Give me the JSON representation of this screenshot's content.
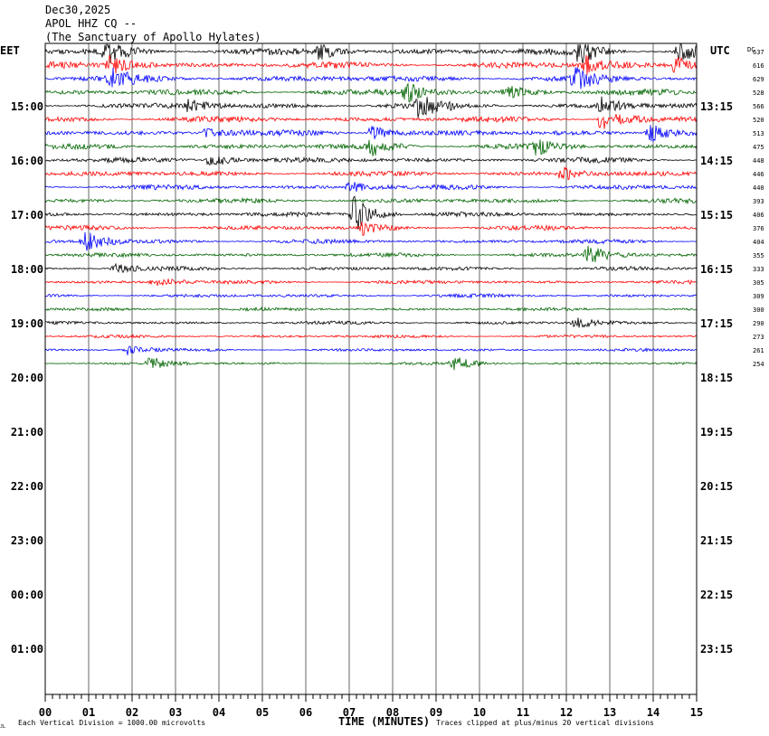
{
  "header": {
    "date": "Dec30,2025",
    "station": "APOL HHZ CQ --",
    "site": "(The Sanctuary of Apollo Hylates)"
  },
  "labels": {
    "left_tz": "EET",
    "right_tz": "UTC",
    "dc": "DC",
    "xlabel": "TIME (MINUTES)",
    "footer_left": "Each Vertical Division = 1000.00 microvolts",
    "footer_right": "Traces clipped at plus/minus 20 vertical divisions",
    "corner_mark": "JL"
  },
  "colors": {
    "trace_cycle": [
      "#000000",
      "#ff0000",
      "#0000ff",
      "#006400"
    ],
    "grid": "#000000",
    "frame": "#000000"
  },
  "chart_data": {
    "type": "line",
    "title": "Dec30,2025 APOL HHZ CQ -- (The Sanctuary of Apollo Hylates)",
    "xlabel": "TIME (MINUTES)",
    "xlim": [
      0,
      15
    ],
    "x_ticks": [
      "00",
      "01",
      "02",
      "03",
      "04",
      "05",
      "06",
      "07",
      "08",
      "09",
      "10",
      "11",
      "12",
      "13",
      "14",
      "15"
    ],
    "left_hour_labels": [
      "15:00",
      "16:00",
      "17:00",
      "18:00",
      "19:00",
      "20:00",
      "21:00",
      "22:00",
      "23:00",
      "00:00",
      "01:00"
    ],
    "right_hour_labels": [
      "13:15",
      "14:15",
      "15:15",
      "16:15",
      "17:15",
      "18:15",
      "19:15",
      "20:15",
      "21:15",
      "22:15",
      "23:15"
    ],
    "rows_per_hour": 4,
    "dc_offsets": [
      637,
      616,
      629,
      528,
      566,
      520,
      513,
      475,
      448,
      446,
      440,
      393,
      406,
      376,
      404,
      355,
      333,
      305,
      309,
      300,
      290,
      273,
      261,
      254
    ],
    "trace_count": 24,
    "units": "microvolts",
    "vertical_division_uV": 1000.0,
    "clip_divisions": 20,
    "events": [
      {
        "row": 0,
        "minute": 1.4,
        "strength": 1.2
      },
      {
        "row": 0,
        "minute": 6.3,
        "strength": 0.8
      },
      {
        "row": 0,
        "minute": 12.3,
        "strength": 1.3
      },
      {
        "row": 0,
        "minute": 14.6,
        "strength": 1.0
      },
      {
        "row": 1,
        "minute": 1.5,
        "strength": 1.2
      },
      {
        "row": 1,
        "minute": 12.4,
        "strength": 1.0
      },
      {
        "row": 1,
        "minute": 14.5,
        "strength": 0.9
      },
      {
        "row": 2,
        "minute": 1.5,
        "strength": 0.9
      },
      {
        "row": 2,
        "minute": 12.2,
        "strength": 1.1
      },
      {
        "row": 3,
        "minute": 8.3,
        "strength": 1.0
      },
      {
        "row": 3,
        "minute": 10.6,
        "strength": 0.7
      },
      {
        "row": 4,
        "minute": 3.3,
        "strength": 0.6
      },
      {
        "row": 4,
        "minute": 8.6,
        "strength": 1.1
      },
      {
        "row": 4,
        "minute": 12.8,
        "strength": 0.8
      },
      {
        "row": 5,
        "minute": 12.8,
        "strength": 1.3
      },
      {
        "row": 6,
        "minute": 3.7,
        "strength": 0.6
      },
      {
        "row": 6,
        "minute": 7.5,
        "strength": 0.8
      },
      {
        "row": 6,
        "minute": 13.9,
        "strength": 1.1
      },
      {
        "row": 7,
        "minute": 7.5,
        "strength": 1.0
      },
      {
        "row": 7,
        "minute": 11.3,
        "strength": 0.8
      },
      {
        "row": 8,
        "minute": 3.8,
        "strength": 0.9
      },
      {
        "row": 9,
        "minute": 11.9,
        "strength": 0.7
      },
      {
        "row": 10,
        "minute": 7.0,
        "strength": 0.6
      },
      {
        "row": 12,
        "minute": 7.1,
        "strength": 2.0
      },
      {
        "row": 13,
        "minute": 7.3,
        "strength": 0.7
      },
      {
        "row": 14,
        "minute": 0.9,
        "strength": 1.1
      },
      {
        "row": 15,
        "minute": 12.5,
        "strength": 1.0
      },
      {
        "row": 16,
        "minute": 1.6,
        "strength": 0.5
      },
      {
        "row": 17,
        "minute": 2.5,
        "strength": 0.6
      },
      {
        "row": 20,
        "minute": 12.2,
        "strength": 0.6
      },
      {
        "row": 22,
        "minute": 1.9,
        "strength": 0.5
      },
      {
        "row": 23,
        "minute": 2.4,
        "strength": 0.7
      },
      {
        "row": 23,
        "minute": 9.4,
        "strength": 0.8
      }
    ]
  }
}
